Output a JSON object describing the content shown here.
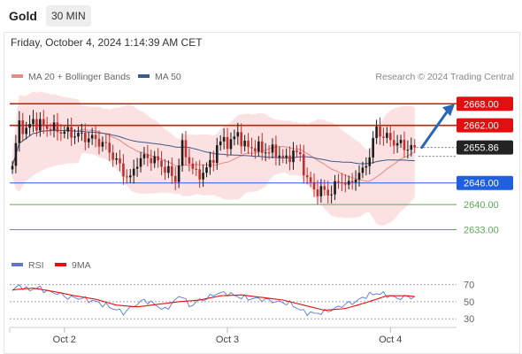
{
  "header": {
    "asset": "Gold",
    "timeframe": "30 MIN"
  },
  "timestamp": "Friday, October 4, 2024 1:14:39 AM CET",
  "colors": {
    "up": "#1c1c1c",
    "down": "#c03030",
    "ma20": "#e88888",
    "ma50": "#3a5a8c",
    "bands": "#fadcdc",
    "resistance": "#e01010",
    "pivot": "#1f5fe0",
    "support": "#5aa85a",
    "price_box": "#222222",
    "arrow": "#2a66b8",
    "rsi": "#5d76d6",
    "rsi_ma": "#e01010"
  },
  "chart_data": [
    {
      "type": "line",
      "title": "",
      "legend": {
        "position": "top-left",
        "entries": [
          "MA 20 + Bollinger Bands",
          "MA 50"
        ]
      },
      "credit": "Research © 2024 Trading Central",
      "ylim": [
        2626,
        2672
      ],
      "x_ticks": [
        {
          "label": "Oct 2",
          "index": 15
        },
        {
          "label": "Oct 3",
          "index": 62
        },
        {
          "label": "Oct 4",
          "index": 109
        }
      ],
      "levels": [
        {
          "label": "2668.00",
          "value": 2668.0,
          "kind": "resistance"
        },
        {
          "label": "2662.00",
          "value": 2662.0,
          "kind": "resistance"
        },
        {
          "label": "2646.00",
          "value": 2646.0,
          "kind": "pivot"
        },
        {
          "label": "2640.00",
          "value": 2640.0,
          "kind": "support"
        },
        {
          "label": "2633.00",
          "value": 2633.0,
          "kind": "support"
        }
      ],
      "last_price": {
        "label": "2655.86",
        "value": 2655.86
      },
      "anchors": [
        [
          0,
          2650
        ],
        [
          2,
          2663
        ],
        [
          4,
          2660
        ],
        [
          6,
          2664
        ],
        [
          7,
          2662
        ],
        [
          9,
          2662
        ],
        [
          12,
          2661
        ],
        [
          16,
          2660
        ],
        [
          20,
          2659
        ],
        [
          24,
          2658
        ],
        [
          26,
          2657
        ],
        [
          28,
          2655
        ],
        [
          30,
          2652
        ],
        [
          32,
          2649
        ],
        [
          34,
          2647
        ],
        [
          36,
          2652
        ],
        [
          38,
          2653
        ],
        [
          40,
          2653
        ],
        [
          43,
          2651
        ],
        [
          45,
          2649
        ],
        [
          47,
          2647
        ],
        [
          49,
          2656
        ],
        [
          51,
          2652
        ],
        [
          53,
          2648
        ],
        [
          55,
          2649
        ],
        [
          57,
          2651
        ],
        [
          59,
          2656
        ],
        [
          61,
          2658
        ],
        [
          63,
          2657
        ],
        [
          65,
          2660
        ],
        [
          67,
          2656
        ],
        [
          70,
          2656
        ],
        [
          72,
          2655
        ],
        [
          74,
          2655
        ],
        [
          77,
          2654
        ],
        [
          79,
          2652
        ],
        [
          81,
          2655
        ],
        [
          83,
          2653
        ],
        [
          85,
          2647
        ],
        [
          87,
          2644
        ],
        [
          89,
          2644
        ],
        [
          91,
          2643
        ],
        [
          93,
          2645
        ],
        [
          95,
          2647
        ],
        [
          97,
          2645
        ],
        [
          99,
          2648
        ],
        [
          101,
          2649
        ],
        [
          103,
          2654
        ],
        [
          105,
          2661
        ],
        [
          107,
          2659
        ],
        [
          109,
          2658
        ],
        [
          111,
          2657
        ],
        [
          113,
          2656
        ],
        [
          115,
          2656
        ],
        [
          116,
          2656
        ]
      ],
      "projection": {
        "from": 2655.86,
        "to": 2668.0
      }
    },
    {
      "type": "line",
      "title": "",
      "legend": {
        "position": "top-left",
        "entries": [
          "RSI",
          "9MA"
        ]
      },
      "ylim": [
        25,
        78
      ],
      "y_ticks": [
        {
          "label": "70",
          "value": 70
        },
        {
          "label": "50",
          "value": 50
        },
        {
          "label": "30",
          "value": 30
        }
      ],
      "rsi_anchors": [
        [
          0,
          62
        ],
        [
          2,
          70
        ],
        [
          4,
          64
        ],
        [
          6,
          65
        ],
        [
          8,
          66
        ],
        [
          10,
          62
        ],
        [
          13,
          60
        ],
        [
          16,
          55
        ],
        [
          20,
          54
        ],
        [
          24,
          50
        ],
        [
          28,
          44
        ],
        [
          32,
          37
        ],
        [
          35,
          45
        ],
        [
          38,
          52
        ],
        [
          41,
          47
        ],
        [
          44,
          40
        ],
        [
          47,
          52
        ],
        [
          49,
          58
        ],
        [
          51,
          44
        ],
        [
          53,
          50
        ],
        [
          56,
          54
        ],
        [
          59,
          60
        ],
        [
          62,
          60
        ],
        [
          65,
          56
        ],
        [
          68,
          54
        ],
        [
          72,
          53
        ],
        [
          76,
          50
        ],
        [
          80,
          48
        ],
        [
          84,
          38
        ],
        [
          87,
          36
        ],
        [
          90,
          38
        ],
        [
          93,
          42
        ],
        [
          96,
          47
        ],
        [
          99,
          50
        ],
        [
          102,
          57
        ],
        [
          105,
          60
        ],
        [
          108,
          58
        ],
        [
          111,
          54
        ],
        [
          114,
          56
        ],
        [
          116,
          55
        ]
      ],
      "ma_anchors": [
        [
          0,
          64
        ],
        [
          6,
          66
        ],
        [
          12,
          62
        ],
        [
          18,
          57
        ],
        [
          24,
          53
        ],
        [
          30,
          46
        ],
        [
          36,
          44
        ],
        [
          42,
          47
        ],
        [
          48,
          50
        ],
        [
          54,
          52
        ],
        [
          60,
          57
        ],
        [
          66,
          58
        ],
        [
          72,
          55
        ],
        [
          78,
          52
        ],
        [
          84,
          46
        ],
        [
          90,
          40
        ],
        [
          96,
          42
        ],
        [
          102,
          49
        ],
        [
          108,
          57
        ],
        [
          114,
          57
        ],
        [
          116,
          56
        ]
      ]
    }
  ]
}
